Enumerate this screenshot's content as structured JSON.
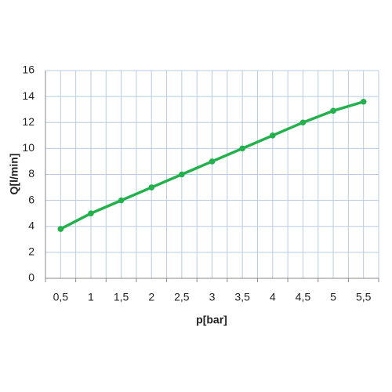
{
  "chart_data": {
    "type": "line",
    "x_label": "p[bar]",
    "y_label": "Q[l/min]",
    "categories": [
      "0,5",
      "1",
      "1,5",
      "2",
      "2,5",
      "3",
      "3,5",
      "4",
      "4,5",
      "5",
      "5,5"
    ],
    "values": [
      3.8,
      5.0,
      6.0,
      7.0,
      8.0,
      9.0,
      10.0,
      11.0,
      12.0,
      12.9,
      13.6
    ],
    "color": "#22b14c",
    "ylim": [
      0,
      16
    ],
    "yticks": [
      0,
      2,
      4,
      6,
      8,
      10,
      12,
      14,
      16
    ],
    "grid": true
  }
}
